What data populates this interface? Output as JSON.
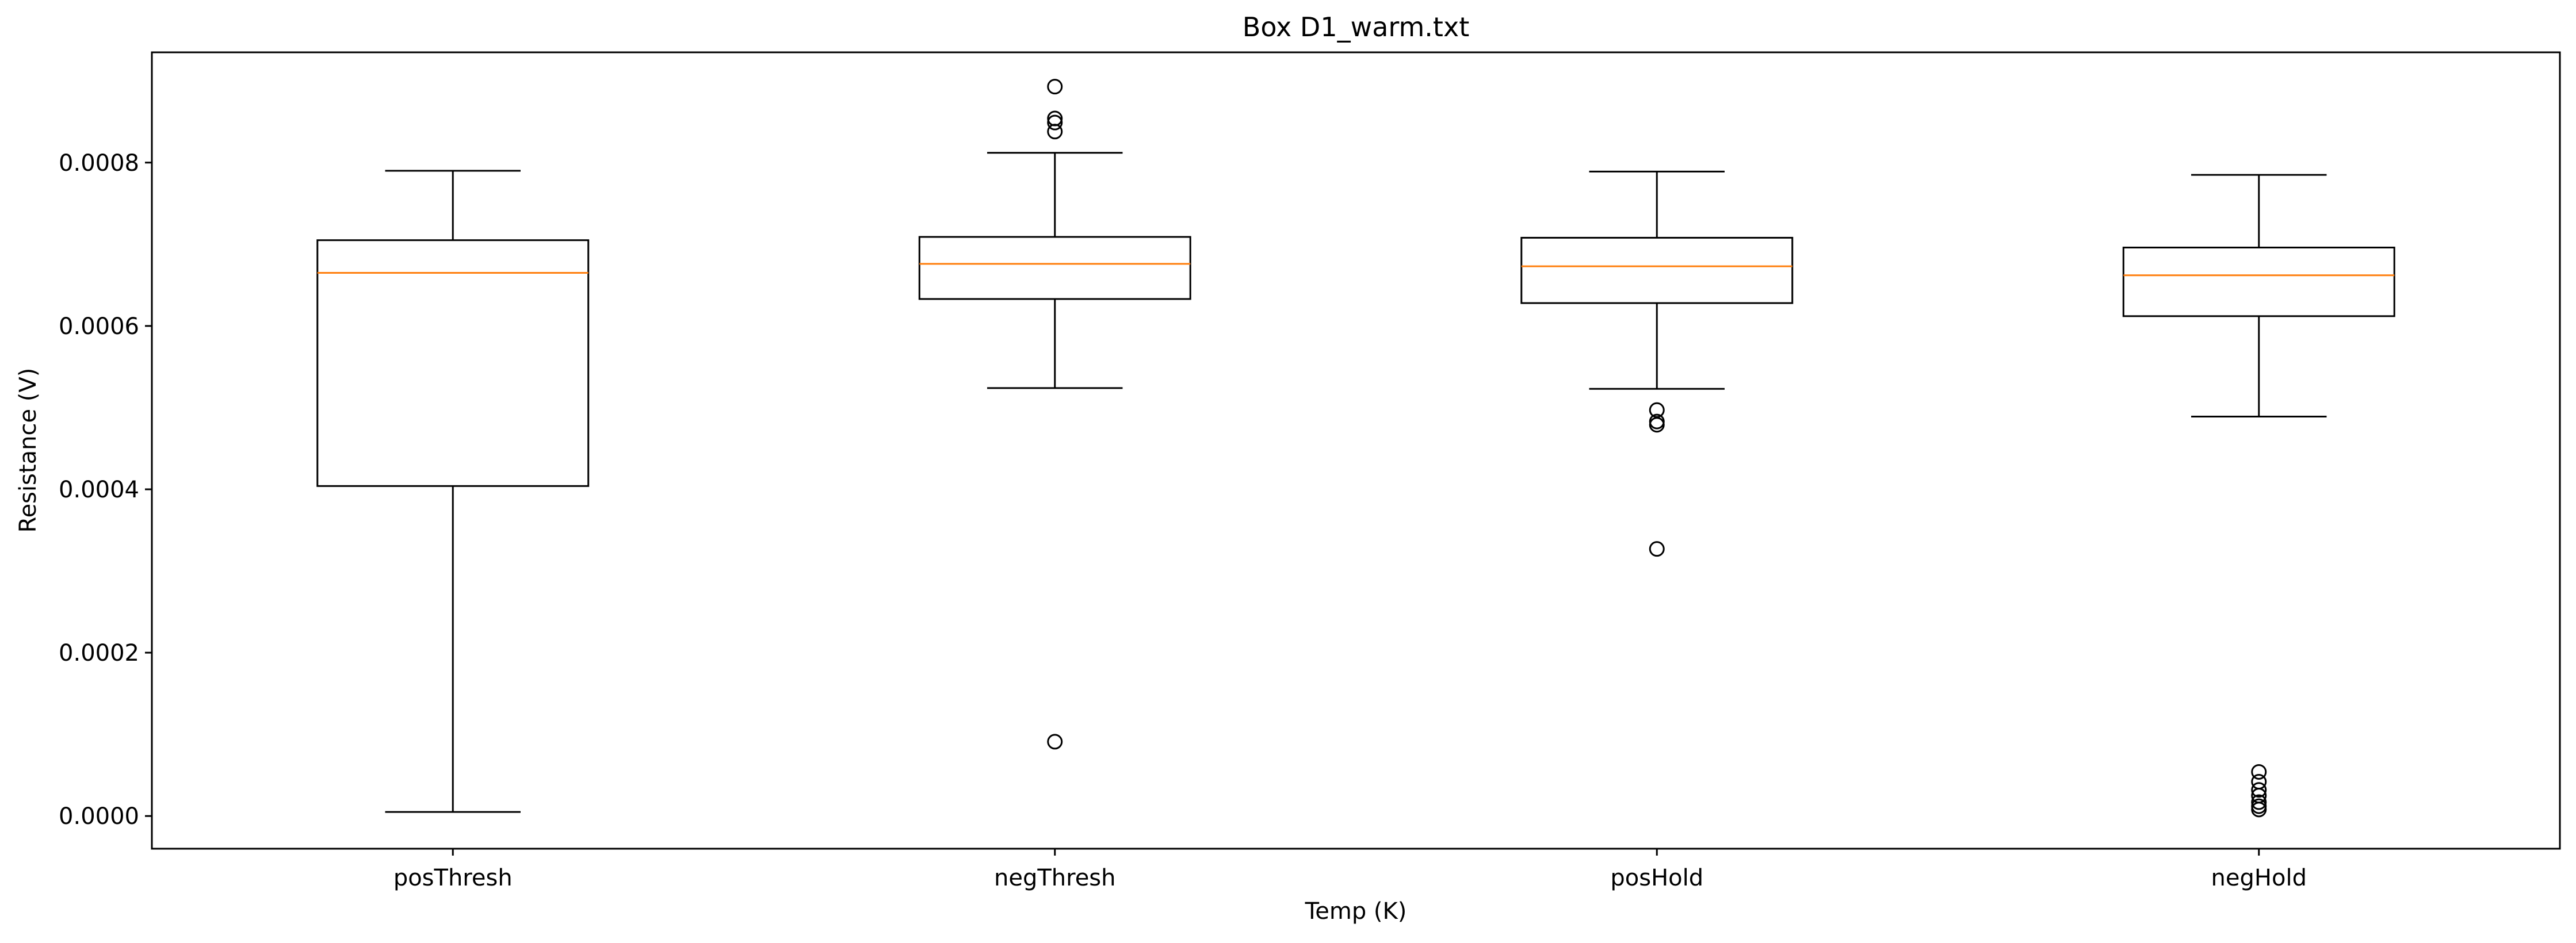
{
  "chart_data": {
    "type": "box",
    "title": "Box D1_warm.txt",
    "xlabel": "Temp (K)",
    "ylabel": "Resistance (V)",
    "categories": [
      "posThresh",
      "negThresh",
      "posHold",
      "negHold"
    ],
    "ylim": [
      -4e-05,
      0.000935
    ],
    "yticks": [
      0.0,
      0.0002,
      0.0004,
      0.0006,
      0.0008
    ],
    "ytick_labels": [
      "0.0000",
      "0.0002",
      "0.0004",
      "0.0006",
      "0.0008"
    ],
    "grid": false,
    "boxes": [
      {
        "category": "posThresh",
        "whisker_low": 5e-06,
        "q1": 0.000404,
        "median": 0.000665,
        "q3": 0.000705,
        "whisker_high": 0.00079,
        "outliers": []
      },
      {
        "category": "negThresh",
        "whisker_low": 0.000524,
        "q1": 0.000633,
        "median": 0.000676,
        "q3": 0.000709,
        "whisker_high": 0.000812,
        "outliers": [
          0.000893,
          0.000854,
          0.000849,
          0.000838,
          9.1e-05
        ]
      },
      {
        "category": "posHold",
        "whisker_low": 0.000523,
        "q1": 0.000628,
        "median": 0.000673,
        "q3": 0.000708,
        "whisker_high": 0.000789,
        "outliers": [
          0.000497,
          0.000483,
          0.000479,
          0.000327
        ]
      },
      {
        "category": "negHold",
        "whisker_low": 0.000489,
        "q1": 0.000612,
        "median": 0.000662,
        "q3": 0.000696,
        "whisker_high": 0.000785,
        "outliers": [
          5.4e-05,
          4.2e-05,
          3.2e-05,
          2.5e-05,
          1.7e-05,
          1.2e-05,
          8e-06
        ]
      }
    ],
    "colors": {
      "box": "#000000",
      "median": "#ff7f0e",
      "outlier": "#000000"
    }
  }
}
